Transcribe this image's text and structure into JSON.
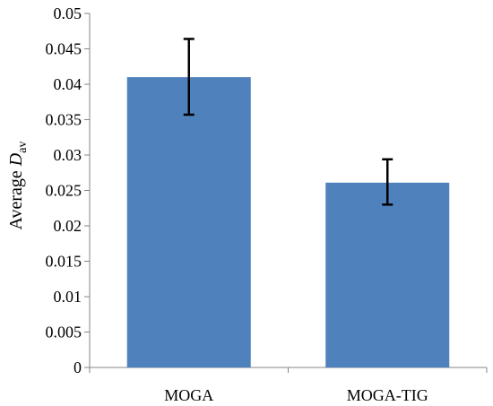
{
  "chart_data": {
    "type": "bar",
    "categories": [
      "MOGA",
      "MOGA-TIG"
    ],
    "values": [
      0.041,
      0.0261
    ],
    "error_low": [
      0.0357,
      0.023
    ],
    "error_high": [
      0.0464,
      0.0294
    ],
    "ylabel": "Average ",
    "ylabel_symbol": "D",
    "ylabel_subscript": "av",
    "ylim": [
      0,
      0.05
    ],
    "yticks": [
      "0",
      "0.005",
      "0.01",
      "0.015",
      "0.02",
      "0.025",
      "0.03",
      "0.035",
      "0.04",
      "0.045",
      "0.05"
    ],
    "grid": false,
    "legend": "none",
    "bar_color": "#4f81bd",
    "axis_color": "#868686",
    "error_bar_color": "#000000"
  }
}
